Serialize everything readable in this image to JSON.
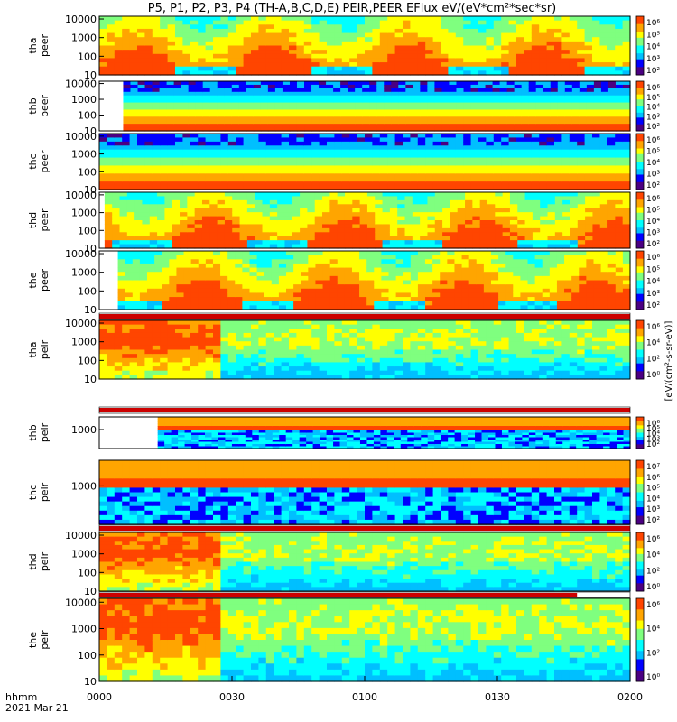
{
  "title": "P5, P1, P2, P3, P4 (TH-A,B,C,D,E) PEIR,PEER EFlux eV/(eV*cm²*sec*sr)",
  "xaxis": {
    "label": "hhmm",
    "date": "2021 Mar 21",
    "ticks": [
      "0000",
      "0030",
      "0100",
      "0130",
      "0200"
    ]
  },
  "colorbar_label": "[eV/(cm²-s-sr-eV)]",
  "chart_data": {
    "type": "heatmap",
    "x_range_minutes": [
      0,
      120
    ],
    "panels": [
      {
        "name": "tha_peer",
        "label": "tha\npeer",
        "yticks": [
          "10000",
          "1000",
          "100",
          "10"
        ],
        "ylog": [
          10,
          14000
        ],
        "cbar_ticks": [
          "10⁶",
          "10⁵",
          "10⁴",
          "10³",
          "10²"
        ],
        "start_frac": 0.0,
        "pattern": "peer_dyn"
      },
      {
        "name": "thb_peer",
        "label": "thb\npeer",
        "yticks": [
          "10000",
          "1000",
          "100",
          "10"
        ],
        "ylog": [
          10,
          14000
        ],
        "cbar_ticks": [
          "10⁶",
          "10⁵",
          "10⁴",
          "10³",
          "10²"
        ],
        "start_frac": 0.045,
        "pattern": "peer_flat"
      },
      {
        "name": "thc_peer",
        "label": "thc\npeer",
        "yticks": [
          "10000",
          "1000",
          "100",
          "10"
        ],
        "ylog": [
          10,
          14000
        ],
        "cbar_ticks": [
          "10⁶",
          "10⁵",
          "10⁴",
          "10³",
          "10²"
        ],
        "start_frac": 0.0,
        "pattern": "peer_c"
      },
      {
        "name": "thd_peer",
        "label": "thd\npeer",
        "yticks": [
          "10000",
          "1000",
          "100",
          "10"
        ],
        "ylog": [
          10,
          14000
        ],
        "cbar_ticks": [
          "10⁶",
          "10⁵",
          "10⁴",
          "10³",
          "10²"
        ],
        "start_frac": 0.01,
        "pattern": "peer_dyn"
      },
      {
        "name": "the_peer",
        "label": "the\npeer",
        "yticks": [
          "10000",
          "1000",
          "100",
          "10"
        ],
        "ylog": [
          10,
          14000
        ],
        "cbar_ticks": [
          "10⁶",
          "10⁵",
          "10⁴",
          "10³",
          "10²"
        ],
        "start_frac": 0.035,
        "pattern": "peer_dyn"
      },
      {
        "name": "tha_peir",
        "label": "tha\npeir",
        "yticks": [
          "10000",
          "1000",
          "100",
          "10"
        ],
        "ylog": [
          10,
          14000
        ],
        "cbar_ticks": [
          "10⁶",
          "10⁴",
          "10²",
          "10⁰"
        ],
        "start_frac": 0.0,
        "pattern": "peir_dyn"
      },
      {
        "name": "thb_peir",
        "label": "thb\npeir",
        "yticks": [
          "1000"
        ],
        "ylog": [
          10,
          14000
        ],
        "cbar_ticks": [
          "10⁶",
          "10⁵",
          "10⁴",
          "10³",
          "10²"
        ],
        "start_frac": 0.11,
        "pattern": "peir_band"
      },
      {
        "name": "thc_peir",
        "label": "thc\npeir",
        "yticks": [
          "1000"
        ],
        "ylog": [
          10,
          14000
        ],
        "cbar_ticks": [
          "10⁷",
          "10⁶",
          "10⁵",
          "10⁴",
          "10³",
          "10²"
        ],
        "start_frac": 0.0,
        "pattern": "peir_band"
      },
      {
        "name": "thd_peir",
        "label": "thd\npeir",
        "yticks": [
          "10000",
          "1000",
          "100",
          "10"
        ],
        "ylog": [
          10,
          14000
        ],
        "cbar_ticks": [
          "10⁶",
          "10⁴",
          "10²",
          "10⁰"
        ],
        "start_frac": 0.0,
        "pattern": "peir_dyn"
      },
      {
        "name": "the_peir",
        "label": "the\npeir",
        "yticks": [
          "10000",
          "1000",
          "100",
          "10"
        ],
        "ylog": [
          10,
          14000
        ],
        "cbar_ticks": [
          "10⁶",
          "10⁴",
          "10²",
          "10⁰"
        ],
        "start_frac": 0.0,
        "pattern": "peir_dyn"
      }
    ],
    "colormap": [
      "#4b0082",
      "#0000ff",
      "#00bfff",
      "#00ffff",
      "#7fff7f",
      "#ffff00",
      "#ffa500",
      "#ff4500",
      "#cc0000"
    ]
  }
}
